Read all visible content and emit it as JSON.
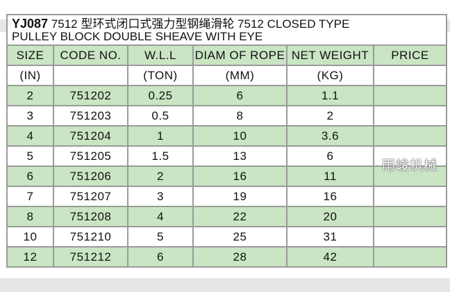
{
  "title": {
    "code": "YJ087",
    "text": "7512 型环式闭口式强力型钢绳滑轮 7512 CLOSED TYPE",
    "line2": "PULLEY BLOCK DOUBLE SHEAVE WITH EYE"
  },
  "headers": [
    "SIZE",
    "CODE NO.",
    "W.L.L",
    "DIAM OF ROPE",
    "NET WEIGHT",
    "PRICE"
  ],
  "units": [
    "(IN)",
    "",
    "(TON)",
    "(MM)",
    "(KG)",
    ""
  ],
  "rows": [
    [
      "2",
      "751202",
      "0.25",
      "6",
      "1.1",
      ""
    ],
    [
      "3",
      "751203",
      "0.5",
      "8",
      "2",
      ""
    ],
    [
      "4",
      "751204",
      "1",
      "10",
      "3.6",
      ""
    ],
    [
      "5",
      "751205",
      "1.5",
      "13",
      "6",
      ""
    ],
    [
      "6",
      "751206",
      "2",
      "16",
      "11",
      ""
    ],
    [
      "7",
      "751207",
      "3",
      "19",
      "16",
      ""
    ],
    [
      "8",
      "751208",
      "4",
      "22",
      "20",
      ""
    ],
    [
      "10",
      "751210",
      "5",
      "25",
      "31",
      ""
    ],
    [
      "12",
      "751212",
      "6",
      "28",
      "42",
      ""
    ]
  ],
  "watermark": "雨峻机械",
  "colors": {
    "green": "#c9e5c3",
    "border": "#9a9a9a"
  }
}
